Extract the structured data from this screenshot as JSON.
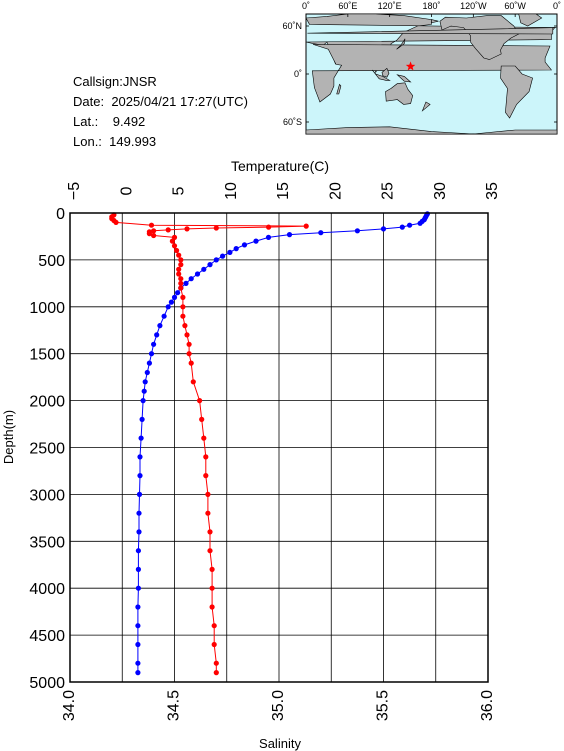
{
  "station": {
    "callsign": "Callsign:JNSR",
    "date_label": "Date:",
    "date_value": "2025/04/21 17:27(UTC)",
    "lat_label": "Lat.:",
    "lat_value": "9.492",
    "lon_label": "Lon.:",
    "lon_value": "149.993"
  },
  "map": {
    "lon_labels": [
      "0˚",
      "60˚E",
      "120˚E",
      "180˚",
      "120˚W",
      "60˚W",
      "0˚"
    ],
    "lat_labels": [
      "60˚N",
      "0˚",
      "60˚S"
    ],
    "ocean_color": "#ccf5fa",
    "land_color": "#b3b3b3",
    "marker_color": "#ff0000",
    "marker": {
      "lon": 149.993,
      "lat": 9.492
    }
  },
  "chart_data": {
    "type": "scatter",
    "title": "",
    "ylabel": "Depth(m)",
    "ylim": [
      0,
      5000
    ],
    "y_reversed": true,
    "y_ticks": [
      0,
      500,
      1000,
      1500,
      2000,
      2500,
      3000,
      3500,
      4000,
      4500,
      5000
    ],
    "top_axis": {
      "label": "Temperature(C)",
      "range": [
        -5,
        35
      ],
      "ticks": [
        -5,
        0,
        5,
        10,
        15,
        20,
        25,
        30,
        35
      ]
    },
    "bottom_axis": {
      "label": "Salinity",
      "range": [
        34.0,
        36.0
      ],
      "ticks": [
        "34.0",
        "34.5",
        "35.0",
        "35.5",
        "36.0"
      ]
    },
    "grid": true,
    "series": [
      {
        "quantity": "temperature",
        "axis": "top",
        "color": "#0000ff",
        "depth": [
          10,
          30,
          50,
          70,
          90,
          110,
          130,
          150,
          170,
          190,
          210,
          230,
          260,
          300,
          340,
          380,
          420,
          460,
          500,
          550,
          600,
          650,
          700,
          750,
          800,
          850,
          900,
          950,
          1000,
          1100,
          1200,
          1300,
          1400,
          1500,
          1600,
          1700,
          1800,
          1900,
          2000,
          2200,
          2400,
          2600,
          2800,
          3000,
          3200,
          3400,
          3600,
          3800,
          4000,
          4200,
          4400,
          4600,
          4800,
          4900
        ],
        "values": [
          29.2,
          29.1,
          29.0,
          28.9,
          28.7,
          28.5,
          27.5,
          26.8,
          25.0,
          22.5,
          19.0,
          16.0,
          14.0,
          12.8,
          11.7,
          10.9,
          10.3,
          9.6,
          9.0,
          8.4,
          7.8,
          7.2,
          6.6,
          6.1,
          5.6,
          5.3,
          5.0,
          4.7,
          4.4,
          4.0,
          3.6,
          3.3,
          3.0,
          2.8,
          2.6,
          2.4,
          2.2,
          2.1,
          2.0,
          1.9,
          1.8,
          1.7,
          1.7,
          1.65,
          1.6,
          1.6,
          1.55,
          1.55,
          1.55,
          1.5,
          1.5,
          1.5,
          1.5,
          1.5
        ]
      },
      {
        "quantity": "salinity",
        "axis": "bottom",
        "color": "#ff0000",
        "depth": [
          20,
          40,
          60,
          80,
          100,
          130,
          140,
          150,
          160,
          170,
          180,
          190,
          200,
          220,
          240,
          260,
          300,
          350,
          400,
          450,
          500,
          550,
          600,
          650,
          700,
          750,
          800,
          900,
          1000,
          1100,
          1200,
          1300,
          1400,
          1500,
          1600,
          1800,
          2000,
          2200,
          2400,
          2600,
          2800,
          3000,
          3200,
          3400,
          3600,
          3800,
          4000,
          4200,
          4400,
          4600,
          4800,
          4900
        ],
        "values": [
          34.21,
          34.2,
          34.2,
          34.21,
          34.22,
          34.39,
          35.13,
          34.95,
          34.7,
          34.56,
          34.47,
          34.4,
          34.38,
          34.38,
          34.4,
          34.5,
          34.49,
          34.5,
          34.51,
          34.52,
          34.53,
          34.53,
          34.52,
          34.52,
          34.53,
          34.53,
          34.53,
          34.54,
          34.54,
          34.54,
          34.55,
          34.56,
          34.57,
          34.57,
          34.58,
          34.59,
          34.62,
          34.63,
          34.64,
          34.65,
          34.65,
          34.66,
          34.66,
          34.67,
          34.67,
          34.68,
          34.68,
          34.68,
          34.69,
          34.69,
          34.7,
          34.7
        ]
      }
    ]
  }
}
